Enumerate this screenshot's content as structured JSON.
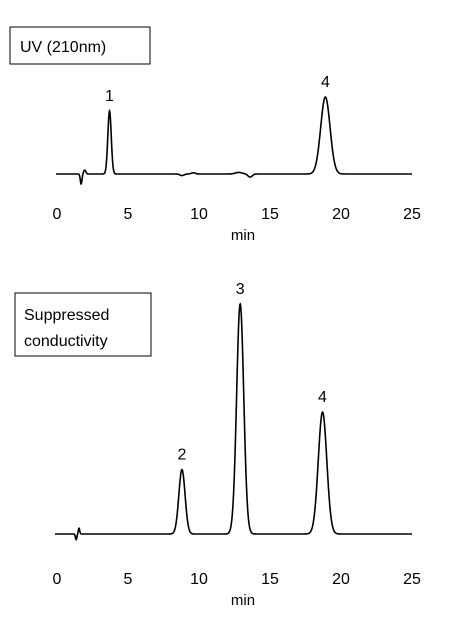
{
  "chart_data": [
    {
      "type": "line",
      "detector_label": "UV (210nm)",
      "xlabel": "min",
      "xlim": [
        0,
        25
      ],
      "xticks": [
        0,
        5,
        10,
        15,
        20,
        25
      ],
      "xtick_labels": [
        "0",
        "5",
        "10",
        "15",
        "20",
        "25"
      ],
      "grid": false,
      "baseline": 0,
      "ylim": [
        -0.15,
        1.2
      ],
      "peaks": [
        {
          "label": "1",
          "time": 3.7,
          "height": 0.82,
          "width": 0.12
        },
        {
          "label": "4",
          "time": 18.9,
          "height": 1.0,
          "width": 0.33
        }
      ],
      "disturbances": [
        {
          "time": 1.7,
          "height": -0.13,
          "width": 0.06
        },
        {
          "time": 1.95,
          "height": 0.05,
          "width": 0.08
        },
        {
          "time": 8.8,
          "height": -0.02,
          "width": 0.15
        },
        {
          "time": 9.6,
          "height": 0.015,
          "width": 0.15
        },
        {
          "time": 12.8,
          "height": 0.02,
          "width": 0.25
        },
        {
          "time": 13.6,
          "height": -0.04,
          "width": 0.15
        }
      ]
    },
    {
      "type": "line",
      "detector_label": "Suppressed conductivity",
      "detector_label_lines": [
        "Suppressed",
        "conductivity"
      ],
      "xlabel": "min",
      "xlim": [
        0,
        25
      ],
      "xticks": [
        0,
        5,
        10,
        15,
        20,
        25
      ],
      "xtick_labels": [
        "0",
        "5",
        "10",
        "15",
        "20",
        "25"
      ],
      "grid": false,
      "baseline": 0,
      "ylim": [
        -0.1,
        1.2
      ],
      "peaks": [
        {
          "label": "2",
          "time": 8.8,
          "height": 0.28,
          "width": 0.22
        },
        {
          "label": "3",
          "time": 12.9,
          "height": 1.0,
          "width": 0.25
        },
        {
          "label": "4",
          "time": 18.7,
          "height": 0.53,
          "width": 0.3
        }
      ],
      "disturbances": [
        {
          "time": 1.35,
          "height": -0.025,
          "width": 0.05
        },
        {
          "time": 1.55,
          "height": 0.025,
          "width": 0.05
        }
      ]
    }
  ]
}
